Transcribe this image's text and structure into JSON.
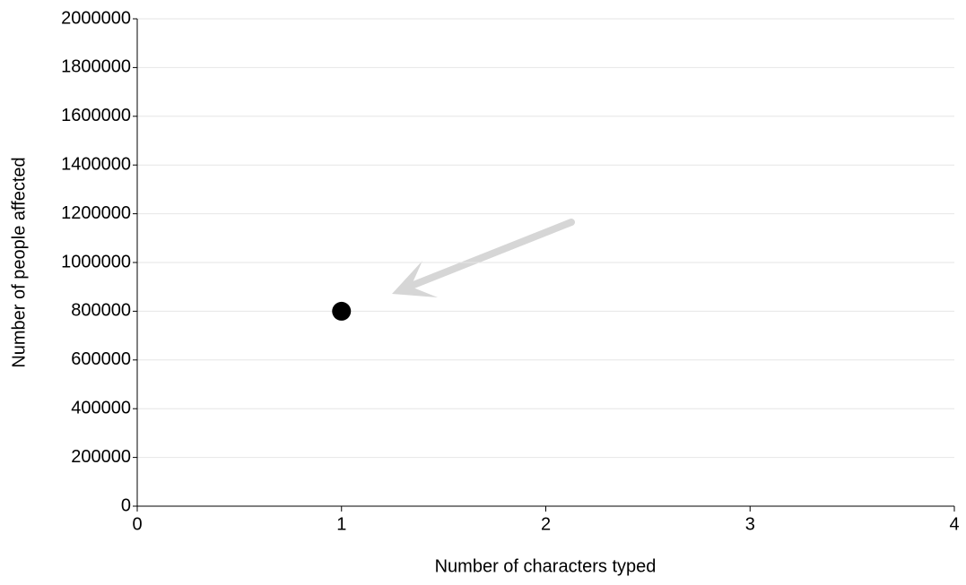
{
  "chart_data": {
    "type": "scatter",
    "x_label": "Number of characters typed",
    "y_label": "Number of people affected",
    "x": [
      1
    ],
    "values": [
      800000
    ],
    "color": "#000000",
    "xlim": [
      0,
      4
    ],
    "xticks": [
      0,
      1,
      2,
      3,
      4
    ],
    "ylim": [
      0,
      2000000
    ],
    "yticks": [
      0,
      200000,
      400000,
      600000,
      800000,
      1000000,
      1200000,
      1400000,
      1600000,
      1800000,
      2000000
    ],
    "grid": true
  }
}
